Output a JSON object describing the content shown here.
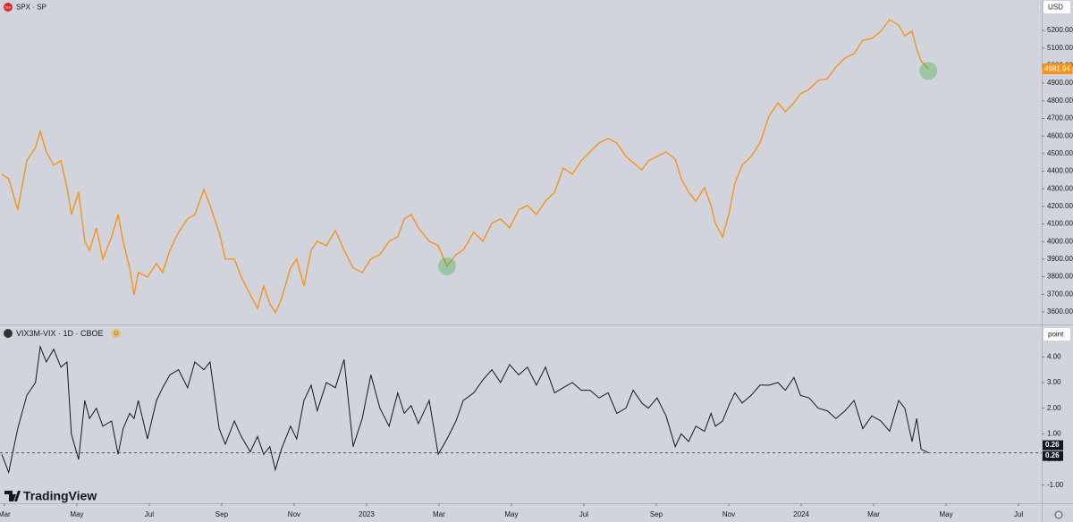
{
  "brand": "TradingView",
  "chart_data": [
    {
      "type": "line",
      "title": "SPX · SP",
      "icon_label": "500",
      "unit_label": "USD",
      "color": "#f7931a",
      "xlim": [
        -0.12,
        28.64
      ],
      "ylim": [
        3534,
        5373
      ],
      "yticks": [
        {
          "value": 3600,
          "label": "3600.00"
        },
        {
          "value": 3700,
          "label": "3700.00"
        },
        {
          "value": 3800,
          "label": "3800.00"
        },
        {
          "value": 3900,
          "label": "3900.00"
        },
        {
          "value": 4000,
          "label": "4000.00"
        },
        {
          "value": 4100,
          "label": "4100.00"
        },
        {
          "value": 4200,
          "label": "4200.00"
        },
        {
          "value": 4300,
          "label": "4300.00"
        },
        {
          "value": 4400,
          "label": "4400.00"
        },
        {
          "value": 4500,
          "label": "4500.00"
        },
        {
          "value": 4600,
          "label": "4600.00"
        },
        {
          "value": 4700,
          "label": "4700.00"
        },
        {
          "value": 4800,
          "label": "4800.00"
        },
        {
          "value": 4900,
          "label": "4900.00"
        },
        {
          "value": 5000,
          "label": "5000.00"
        },
        {
          "value": 5100,
          "label": "5100.00"
        },
        {
          "value": 5200,
          "label": "5200.00"
        }
      ],
      "x": [
        -0.07,
        0.12,
        0.37,
        0.62,
        0.86,
        0.99,
        1.16,
        1.36,
        1.56,
        1.73,
        1.85,
        2.05,
        2.22,
        2.35,
        2.54,
        2.72,
        2.96,
        3.14,
        3.28,
        3.46,
        3.58,
        3.7,
        3.95,
        4.2,
        4.37,
        4.57,
        4.81,
        5.06,
        5.26,
        5.51,
        5.68,
        5.93,
        6.1,
        6.35,
        6.54,
        6.79,
        6.99,
        7.16,
        7.33,
        7.48,
        7.65,
        7.9,
        8.07,
        8.27,
        8.47,
        8.64,
        8.89,
        9.14,
        9.38,
        9.63,
        9.88,
        10.12,
        10.37,
        10.62,
        10.86,
        11.04,
        11.23,
        11.43,
        11.73,
        11.98,
        12.22,
        12.47,
        12.67,
        12.96,
        13.21,
        13.46,
        13.7,
        13.95,
        14.2,
        14.44,
        14.69,
        14.94,
        15.19,
        15.43,
        15.68,
        15.93,
        16.17,
        16.42,
        16.67,
        16.91,
        17.16,
        17.36,
        17.6,
        17.78,
        18.02,
        18.27,
        18.52,
        18.69,
        18.89,
        19.09,
        19.33,
        19.51,
        19.63,
        19.83,
        20.0,
        20.17,
        20.37,
        20.62,
        20.86,
        21.11,
        21.36,
        21.56,
        21.8,
        21.98,
        22.22,
        22.47,
        22.72,
        22.96,
        23.21,
        23.46,
        23.7,
        23.95,
        24.2,
        24.44,
        24.69,
        24.86,
        25.06,
        25.19,
        25.31,
        25.51
      ],
      "values": [
        4383,
        4357,
        4180,
        4459,
        4535,
        4626,
        4510,
        4434,
        4459,
        4307,
        4154,
        4281,
        4002,
        3951,
        4078,
        3901,
        4027,
        4154,
        4002,
        3850,
        3698,
        3824,
        3799,
        3875,
        3824,
        3951,
        4053,
        4129,
        4154,
        4296,
        4205,
        4053,
        3901,
        3901,
        3799,
        3698,
        3621,
        3748,
        3647,
        3596,
        3672,
        3850,
        3901,
        3748,
        3951,
        4002,
        3977,
        4063,
        3951,
        3850,
        3824,
        3901,
        3926,
        4002,
        4027,
        4129,
        4154,
        4078,
        4002,
        3977,
        3860,
        3926,
        3951,
        4053,
        4002,
        4104,
        4129,
        4078,
        4180,
        4205,
        4154,
        4230,
        4281,
        4418,
        4383,
        4459,
        4510,
        4560,
        4586,
        4560,
        4484,
        4449,
        4408,
        4459,
        4484,
        4510,
        4469,
        4357,
        4281,
        4230,
        4307,
        4205,
        4104,
        4027,
        4154,
        4332,
        4434,
        4484,
        4560,
        4713,
        4789,
        4738,
        4789,
        4840,
        4865,
        4916,
        4926,
        4992,
        5043,
        5068,
        5144,
        5154,
        5195,
        5261,
        5230,
        5170,
        5195,
        5093,
        5027,
        4981.94
      ],
      "last_value": 4981.94,
      "highlights": [
        {
          "x": 12.22,
          "y": 3860
        },
        {
          "x": 25.51,
          "y": 4970
        }
      ]
    },
    {
      "type": "line",
      "title": "VIX3M-VIX · 1D · CBOE",
      "badge": "D",
      "unit_label": "point",
      "color": "#131722",
      "xlim": [
        -0.12,
        28.64
      ],
      "ylim": [
        -1.67,
        5.23
      ],
      "yticks": [
        {
          "value": -1,
          "label": "-1.00"
        },
        {
          "value": 0,
          "label": "0.00"
        },
        {
          "value": 1,
          "label": "1.00"
        },
        {
          "value": 2,
          "label": "2.00"
        },
        {
          "value": 3,
          "label": "3.00"
        },
        {
          "value": 4,
          "label": "4.00"
        }
      ],
      "xticks": [
        {
          "value": 0,
          "label": "Mar"
        },
        {
          "value": 2,
          "label": "May"
        },
        {
          "value": 4,
          "label": "Jul"
        },
        {
          "value": 6,
          "label": "Sep"
        },
        {
          "value": 8,
          "label": "Nov"
        },
        {
          "value": 10,
          "label": "2023"
        },
        {
          "value": 12,
          "label": "Mar"
        },
        {
          "value": 14,
          "label": "May"
        },
        {
          "value": 16,
          "label": "Jul"
        },
        {
          "value": 18,
          "label": "Sep"
        },
        {
          "value": 20,
          "label": "Nov"
        },
        {
          "value": 22,
          "label": "2024"
        },
        {
          "value": 24,
          "label": "Mar"
        },
        {
          "value": 26,
          "label": "May"
        },
        {
          "value": 28,
          "label": "Jul"
        }
      ],
      "x": [
        -0.07,
        0.12,
        0.37,
        0.62,
        0.86,
        0.99,
        1.16,
        1.36,
        1.56,
        1.73,
        1.85,
        2.05,
        2.22,
        2.35,
        2.54,
        2.72,
        2.96,
        3.14,
        3.28,
        3.46,
        3.58,
        3.7,
        3.95,
        4.2,
        4.37,
        4.57,
        4.81,
        5.06,
        5.26,
        5.51,
        5.68,
        5.93,
        6.1,
        6.35,
        6.54,
        6.79,
        6.99,
        7.16,
        7.33,
        7.48,
        7.65,
        7.9,
        8.07,
        8.27,
        8.47,
        8.64,
        8.89,
        9.14,
        9.38,
        9.63,
        9.88,
        10.12,
        10.37,
        10.62,
        10.86,
        11.04,
        11.23,
        11.43,
        11.73,
        11.98,
        12.22,
        12.47,
        12.67,
        12.96,
        13.21,
        13.46,
        13.7,
        13.95,
        14.2,
        14.44,
        14.69,
        14.94,
        15.19,
        15.43,
        15.68,
        15.93,
        16.17,
        16.42,
        16.67,
        16.91,
        17.16,
        17.36,
        17.6,
        17.78,
        18.02,
        18.27,
        18.52,
        18.69,
        18.89,
        19.09,
        19.33,
        19.51,
        19.63,
        19.83,
        20.0,
        20.17,
        20.37,
        20.62,
        20.86,
        21.11,
        21.36,
        21.56,
        21.8,
        21.98,
        22.22,
        22.47,
        22.72,
        22.96,
        23.21,
        23.46,
        23.7,
        23.95,
        24.2,
        24.44,
        24.69,
        24.86,
        25.06,
        25.19,
        25.31,
        25.51
      ],
      "values": [
        0.2,
        -0.5,
        1.2,
        2.5,
        3.0,
        4.4,
        3.8,
        4.3,
        3.6,
        3.8,
        1.0,
        0.0,
        2.3,
        1.6,
        2.0,
        1.3,
        1.5,
        0.2,
        1.2,
        1.8,
        1.6,
        2.3,
        0.8,
        2.3,
        2.8,
        3.3,
        3.5,
        2.8,
        3.8,
        3.5,
        3.8,
        1.2,
        0.6,
        1.5,
        0.9,
        0.3,
        0.9,
        0.2,
        0.5,
        -0.4,
        0.4,
        1.3,
        0.8,
        2.3,
        2.9,
        1.9,
        3.0,
        2.8,
        3.9,
        0.5,
        1.6,
        3.3,
        2.0,
        1.3,
        2.6,
        1.8,
        2.1,
        1.4,
        2.3,
        0.2,
        0.8,
        1.5,
        2.3,
        2.6,
        3.1,
        3.5,
        3.0,
        3.7,
        3.3,
        3.6,
        2.9,
        3.6,
        2.6,
        2.8,
        3.0,
        2.7,
        2.7,
        2.4,
        2.6,
        1.8,
        2.0,
        2.7,
        2.2,
        2.0,
        2.4,
        1.7,
        0.5,
        1.0,
        0.7,
        1.3,
        1.1,
        1.8,
        1.3,
        1.5,
        2.1,
        2.6,
        2.2,
        2.5,
        2.9,
        2.9,
        3.0,
        2.7,
        3.2,
        2.5,
        2.4,
        2.0,
        1.9,
        1.6,
        1.9,
        2.3,
        1.2,
        1.7,
        1.5,
        1.1,
        2.3,
        2.0,
        0.7,
        1.6,
        0.4,
        0.26
      ],
      "last_value": 0.26
    }
  ]
}
